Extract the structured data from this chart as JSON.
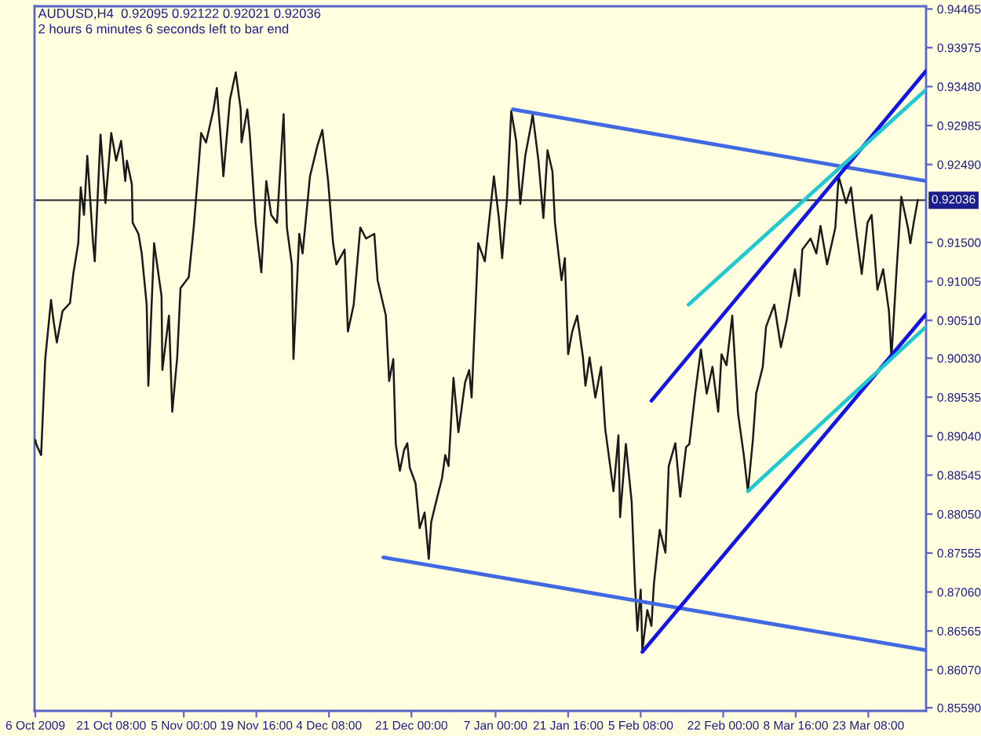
{
  "chart_data": {
    "type": "line",
    "title": "AUDUSD,H4  0.92095 0.92122 0.92021 0.92036",
    "subtitle": "2 hours 6 minutes 6 seconds left to bar end",
    "series": [
      {
        "color": "#1a1a1a",
        "x": [
          "2009-10-06T00:00",
          "2009-10-06T04:00",
          "2009-10-07T04:00",
          "2009-10-08T00:00",
          "2009-10-09T04:00",
          "2009-10-09T16:00",
          "2009-10-10T08:00",
          "2009-10-11T12:00",
          "2009-10-13T00:00",
          "2009-10-13T16:00",
          "2009-10-14T16:00",
          "2009-10-15T04:00",
          "2009-10-15T20:00",
          "2009-10-16T12:00",
          "2009-10-17T16:00",
          "2009-10-18T00:00",
          "2009-10-19T04:00",
          "2009-10-20T04:00",
          "2009-10-21T08:00",
          "2009-10-22T08:00",
          "2009-10-23T08:00",
          "2009-10-24T04:00",
          "2009-10-24T12:00",
          "2009-10-25T12:00",
          "2009-10-25T16:00",
          "2009-10-26T20:00",
          "2009-10-27T12:00",
          "2009-10-28T12:00",
          "2009-10-28T20:00",
          "2009-10-30T00:00",
          "2009-10-31T12:00",
          "2009-10-31T16:00",
          "2009-11-02T00:00",
          "2009-11-02T16:00",
          "2009-11-03T16:00",
          "2009-11-04T08:00",
          "2009-11-06T00:00",
          "2009-11-07T00:00",
          "2009-11-07T20:00",
          "2009-11-08T12:00",
          "2009-11-09T12:00",
          "2009-11-11T00:00",
          "2009-11-11T16:00",
          "2009-11-12T08:00",
          "2009-11-13T00:00",
          "2009-11-14T08:00",
          "2009-11-15T12:00",
          "2009-11-16T12:00",
          "2009-11-16T16:00",
          "2009-11-17T20:00",
          "2009-11-18T08:00",
          "2009-11-19T12:00",
          "2009-11-20T16:00",
          "2009-11-21T16:00",
          "2009-11-22T16:00",
          "2009-11-23T20:00",
          "2009-11-25T04:00",
          "2009-11-25T20:00",
          "2009-11-26T20:00",
          "2009-11-27T04:00",
          "2009-11-28T08:00",
          "2009-11-29T00:00",
          "2009-11-30T12:00",
          "2009-12-02T00:00",
          "2009-12-03T00:00",
          "2009-12-04T04:00",
          "2009-12-05T04:00",
          "2009-12-05T20:00",
          "2009-12-07T12:00",
          "2009-12-08T04:00",
          "2009-12-09T08:00",
          "2009-12-10T16:00",
          "2009-12-11T20:00",
          "2009-12-13T12:00",
          "2009-12-14T04:00",
          "2009-12-15T20:00",
          "2009-12-16T12:00",
          "2009-12-17T08:00",
          "2009-12-17T20:00",
          "2009-12-18T16:00",
          "2009-12-19T12:00",
          "2009-12-20T04:00",
          "2009-12-20T16:00",
          "2009-12-21T20:00",
          "2009-12-22T16:00",
          "2009-12-23T16:00",
          "2009-12-24T12:00",
          "2009-12-25T00:00",
          "2009-12-26T00:00",
          "2009-12-27T04:00",
          "2009-12-27T20:00",
          "2009-12-28T12:00",
          "2009-12-29T12:00",
          "2009-12-30T12:00",
          "2009-12-31T20:00",
          "2010-01-01T16:00",
          "2010-01-02T04:00",
          "2010-01-03T12:00",
          "2010-01-04T20:00",
          "2010-01-06T16:00",
          "2010-01-07T16:00",
          "2010-01-08T08:00",
          "2010-01-09T08:00",
          "2010-01-10T04:00",
          "2010-01-11T04:00",
          "2010-01-12T00:00",
          "2010-01-13T00:00",
          "2010-01-14T04:00",
          "2010-01-14T12:00",
          "2010-01-15T16:00",
          "2010-01-16T16:00",
          "2010-01-17T12:00",
          "2010-01-18T12:00",
          "2010-01-19T00:00",
          "2010-01-20T08:00",
          "2010-01-21T00:00",
          "2010-01-21T16:00",
          "2010-01-22T12:00",
          "2010-01-23T12:00",
          "2010-01-24T16:00",
          "2010-01-25T04:00",
          "2010-01-26T00:00",
          "2010-01-27T04:00",
          "2010-01-28T08:00",
          "2010-01-29T04:00",
          "2010-01-30T04:00",
          "2010-01-30T20:00",
          "2010-01-31T20:00",
          "2010-02-01T04:00",
          "2010-02-02T08:00",
          "2010-02-03T12:00",
          "2010-02-04T04:00",
          "2010-02-04T16:00",
          "2010-02-05T08:00",
          "2010-02-05T16:00",
          "2010-02-06T16:00",
          "2010-02-07T12:00",
          "2010-02-08T00:00",
          "2010-02-09T04:00",
          "2010-02-10T08:00",
          "2010-02-11T00:00",
          "2010-02-12T08:00",
          "2010-02-13T08:00",
          "2010-02-14T12:00",
          "2010-02-15T04:00",
          "2010-02-16T08:00",
          "2010-02-17T12:00",
          "2010-02-18T16:00",
          "2010-02-19T20:00",
          "2010-02-21T00:00",
          "2010-02-21T16:00",
          "2010-02-22T16:00",
          "2010-02-23T20:00",
          "2010-02-25T00:00",
          "2010-02-26T04:00",
          "2010-02-27T00:00",
          "2010-02-28T00:00",
          "2010-02-28T16:00",
          "2010-03-02T00:00",
          "2010-03-02T16:00",
          "2010-03-04T08:00",
          "2010-03-05T16:00",
          "2010-03-06T20:00",
          "2010-03-08T12:00",
          "2010-03-09T08:00",
          "2010-03-10T00:00",
          "2010-03-11T16:00",
          "2010-03-12T20:00",
          "2010-03-13T16:00",
          "2010-03-15T00:00",
          "2010-03-16T16:00",
          "2010-03-17T08:00",
          "2010-03-18T20:00",
          "2010-03-19T20:00",
          "2010-03-20T16:00",
          "2010-03-22T00:00",
          "2010-03-23T04:00",
          "2010-03-24T00:00",
          "2010-03-25T04:00",
          "2010-03-26T08:00",
          "2010-03-27T12:00",
          "2010-03-28T00:00",
          "2010-03-29T00:00",
          "2010-03-30T00:00",
          "2010-03-31T08:00",
          "2010-03-31T20:00",
          "2010-04-01T12:00",
          "2010-04-02T08:00"
        ],
        "values": [
          0.8899,
          0.8894,
          0.888,
          0.9002,
          0.9077,
          0.9051,
          0.9023,
          0.9063,
          0.9073,
          0.911,
          0.9149,
          0.922,
          0.9185,
          0.926,
          0.9149,
          0.9126,
          0.9287,
          0.92,
          0.9289,
          0.9254,
          0.9279,
          0.9228,
          0.9254,
          0.9224,
          0.9175,
          0.9161,
          0.9136,
          0.9071,
          0.8968,
          0.9149,
          0.9082,
          0.8988,
          0.9057,
          0.8935,
          0.9004,
          0.9092,
          0.9106,
          0.9169,
          0.9234,
          0.9289,
          0.9277,
          0.9319,
          0.9346,
          0.9293,
          0.9234,
          0.9332,
          0.9366,
          0.9319,
          0.9277,
          0.9319,
          0.9287,
          0.9175,
          0.9112,
          0.9228,
          0.9185,
          0.9175,
          0.9313,
          0.9169,
          0.9122,
          0.9002,
          0.9161,
          0.9136,
          0.9234,
          0.9273,
          0.9293,
          0.9228,
          0.9149,
          0.9122,
          0.9141,
          0.9037,
          0.9071,
          0.9169,
          0.9155,
          0.9161,
          0.9102,
          0.9057,
          0.8974,
          0.9002,
          0.8894,
          0.886,
          0.8886,
          0.8895,
          0.8864,
          0.8844,
          0.8787,
          0.8807,
          0.8748,
          0.8795,
          0.8821,
          0.885,
          0.888,
          0.8866,
          0.8978,
          0.8909,
          0.8972,
          0.8988,
          0.8953,
          0.9149,
          0.9126,
          0.9234,
          0.9181,
          0.913,
          0.9208,
          0.9317,
          0.9279,
          0.9199,
          0.926,
          0.9299,
          0.9313,
          0.9254,
          0.9181,
          0.9267,
          0.924,
          0.9175,
          0.9102,
          0.913,
          0.9008,
          0.9037,
          0.9057,
          0.9004,
          0.8968,
          0.9004,
          0.8953,
          0.8992,
          0.8913,
          0.8866,
          0.8834,
          0.8905,
          0.8801,
          0.8894,
          0.8821,
          0.8716,
          0.8657,
          0.8709,
          0.8632,
          0.8683,
          0.8663,
          0.8716,
          0.8785,
          0.8756,
          0.8866,
          0.8895,
          0.8827,
          0.889,
          0.8894,
          0.8958,
          0.9014,
          0.8958,
          0.8992,
          0.8935,
          0.9008,
          0.8994,
          0.9057,
          0.8933,
          0.888,
          0.8834,
          0.8899,
          0.8958,
          0.8992,
          0.9043,
          0.9071,
          0.9017,
          0.9051,
          0.9116,
          0.9082,
          0.9141,
          0.9155,
          0.9136,
          0.9171,
          0.9122,
          0.9169,
          0.9234,
          0.92,
          0.922,
          0.9175,
          0.911,
          0.9175,
          0.9185,
          0.909,
          0.9116,
          0.9063,
          0.9004,
          0.911,
          0.9208,
          0.9169,
          0.9149,
          0.9175,
          0.9204
        ]
      },
      {
        "color": "#4169e1",
        "x": [
          "2010-01-10T12:00",
          "2010-04-04T00:00"
        ],
        "values": [
          0.9319,
          0.9228
        ]
      },
      {
        "color": "#4169e1",
        "x": [
          "2009-12-15T08:00",
          "2010-04-04T00:00"
        ],
        "values": [
          0.875,
          0.8632
        ]
      },
      {
        "color": "#1414e6",
        "x": [
          "2010-02-05T16:00",
          "2010-04-04T00:00"
        ],
        "values": [
          0.863,
          0.9059
        ]
      },
      {
        "color": "#1414e6",
        "x": [
          "2010-02-07T12:00",
          "2010-04-04T00:00"
        ],
        "values": [
          0.8949,
          0.9368
        ]
      },
      {
        "color": "#20c8d0",
        "x": [
          "2010-02-27T00:00",
          "2010-04-04T00:00"
        ],
        "values": [
          0.8834,
          0.9043
        ]
      },
      {
        "color": "#20c8d0",
        "x": [
          "2010-02-15T00:00",
          "2010-04-04T00:00"
        ],
        "values": [
          0.9071,
          0.9344
        ]
      }
    ],
    "xlim": [
      "2009-10-05T20:00",
      "2010-04-04T00:00"
    ],
    "xticks": [
      {
        "value": "2009-10-06T00:00",
        "label": "6 Oct 2009"
      },
      {
        "value": "2009-10-21T08:00",
        "label": "21 Oct 08:00"
      },
      {
        "value": "2009-11-05T00:00",
        "label": "5 Nov 00:00"
      },
      {
        "value": "2009-11-19T16:00",
        "label": "19 Nov 16:00"
      },
      {
        "value": "2009-12-04T08:00",
        "label": "4 Dec 08:00"
      },
      {
        "value": "2009-12-21T00:00",
        "label": "21 Dec 00:00"
      },
      {
        "value": "2010-01-07T00:00",
        "label": "7 Jan 00:00"
      },
      {
        "value": "2010-01-21T16:00",
        "label": "21 Jan 16:00"
      },
      {
        "value": "2010-02-05T08:00",
        "label": "5 Feb 08:00"
      },
      {
        "value": "2010-02-22T00:00",
        "label": "22 Feb 00:00"
      },
      {
        "value": "2010-03-08T16:00",
        "label": "8 Mar 16:00"
      },
      {
        "value": "2010-03-23T08:00",
        "label": "23 Mar 08:00"
      }
    ],
    "ylim": [
      0.8555,
      0.945
    ],
    "yticks": [
      0.94465,
      0.93975,
      {
        "value": 0.9348,
        "label": "0.93480"
      },
      0.92985,
      {
        "value": 0.9249,
        "label": "0.92490"
      },
      {
        "value": 0.915,
        "label": "0.91500"
      },
      0.91005,
      {
        "value": 0.9051,
        "label": "0.90510"
      },
      {
        "value": 0.9003,
        "label": "0.90030"
      },
      0.89535,
      {
        "value": 0.8904,
        "label": "0.89040"
      },
      0.88545,
      {
        "value": 0.8805,
        "label": "0.88050"
      },
      0.87555,
      {
        "value": 0.8706,
        "label": "0.87060"
      },
      0.86565,
      {
        "value": 0.8607,
        "label": "0.86070"
      },
      {
        "value": 0.8559,
        "label": "0.85590"
      }
    ],
    "ref_lines": [
      {
        "axis": "y",
        "value": 0.92036,
        "label": "0.92036",
        "color": "#404040"
      }
    ]
  }
}
